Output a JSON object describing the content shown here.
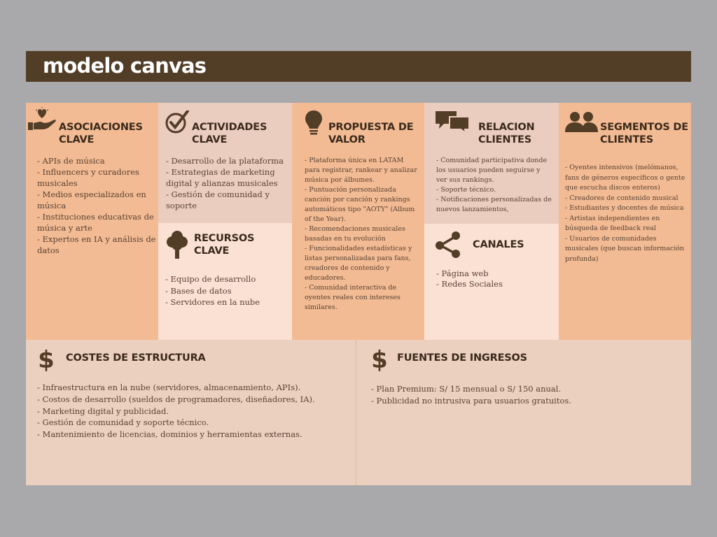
{
  "title": "modelo canvas",
  "colors": {
    "background": "#a9a8aa",
    "title_bar": "#523d27",
    "panel_dark": "#f2bb94",
    "panel_mid": "#eacdbf",
    "panel_light": "#fbe1d3",
    "heading_text": "#3b2a1b",
    "body_text": "#5a4232"
  },
  "asociaciones": {
    "icon": "heart-hand-icon",
    "heading": "ASOCIACIONES\nCLAVE",
    "items": [
      "- APIs de música",
      "- Influencers y curadores musicales",
      "- Medios especializados en música",
      "- Instituciones educativas de música y arte",
      "- Expertos en IA y análisis de datos"
    ]
  },
  "actividades": {
    "icon": "checkmark-icon",
    "heading": "ACTIVIDADES\nCLAVE",
    "items": [
      "- Desarrollo de la plataforma",
      "- Estrategias de marketing digital y alianzas musicales",
      "- Gestión de comunidad y soporte"
    ]
  },
  "recursos": {
    "icon": "tree-icon",
    "heading": "RECURSOS CLAVE",
    "items": [
      "- Equipo de desarrollo",
      "- Bases de datos",
      "- Servidores en la nube"
    ]
  },
  "propuesta": {
    "icon": "lightbulb-icon",
    "heading": "PROPUESTA DE\nVALOR",
    "items": [
      "- Plataforma única en LATAM para registrar, rankear y analizar música por álbumes.",
      "- Puntuación personalizada canción por canción y rankings automáticos tipo \"AOTY\" (Album of the Year).",
      "- Recomendaciones musicales basadas en tu evolución",
      "- Funcionalidades estadísticas y listas personalizadas para fans, creadores de contenido y educadores.",
      "- Comunidad interactiva de oyentes reales con intereses similares."
    ]
  },
  "relacion": {
    "icon": "chat-bubbles-icon",
    "heading": "RELACION\nCLIENTES",
    "items": [
      "- Comunidad participativa donde los usuarios pueden seguirse y ver sus rankings.",
      "- Soporte técnico.",
      "- Notificaciones personalizadas de nuevos lanzamientos,"
    ]
  },
  "canales": {
    "icon": "share-icon",
    "heading": "CANALES",
    "items": [
      "- Página web",
      "- Redes Sociales"
    ]
  },
  "segmentos": {
    "icon": "people-icon",
    "heading": "SEGMENTOS DE\nCLIENTES",
    "items": [
      "- Oyentes intensivos (melómanos, fans de géneros específicos o gente que escucha discos enteros)",
      "- Creadores de contenido musical",
      "- Estudiantes y docentes de música",
      "- Artistas independientes en búsqueda de feedback real",
      "- Usuarios de comunidades musicales (que buscan información profunda)"
    ]
  },
  "costes": {
    "icon": "dollar-icon",
    "heading": "COSTES DE ESTRUCTURA",
    "items": [
      "- Infraestructura en la nube (servidores, almacenamiento, APIs).",
      "- Costos de desarrollo (sueldos de programadores, diseñadores, IA).",
      "- Marketing digital y publicidad.",
      "- Gestión de comunidad y soporte técnico.",
      "- Mantenimiento de licencias, dominios y herramientas externas."
    ]
  },
  "ingresos": {
    "icon": "dollar-icon",
    "heading": "FUENTES DE INGRESOS",
    "items": [
      "- Plan Premium: S/ 15 mensual o S/ 150 anual.",
      "- Publicidad no intrusiva para usuarios gratuitos."
    ]
  }
}
